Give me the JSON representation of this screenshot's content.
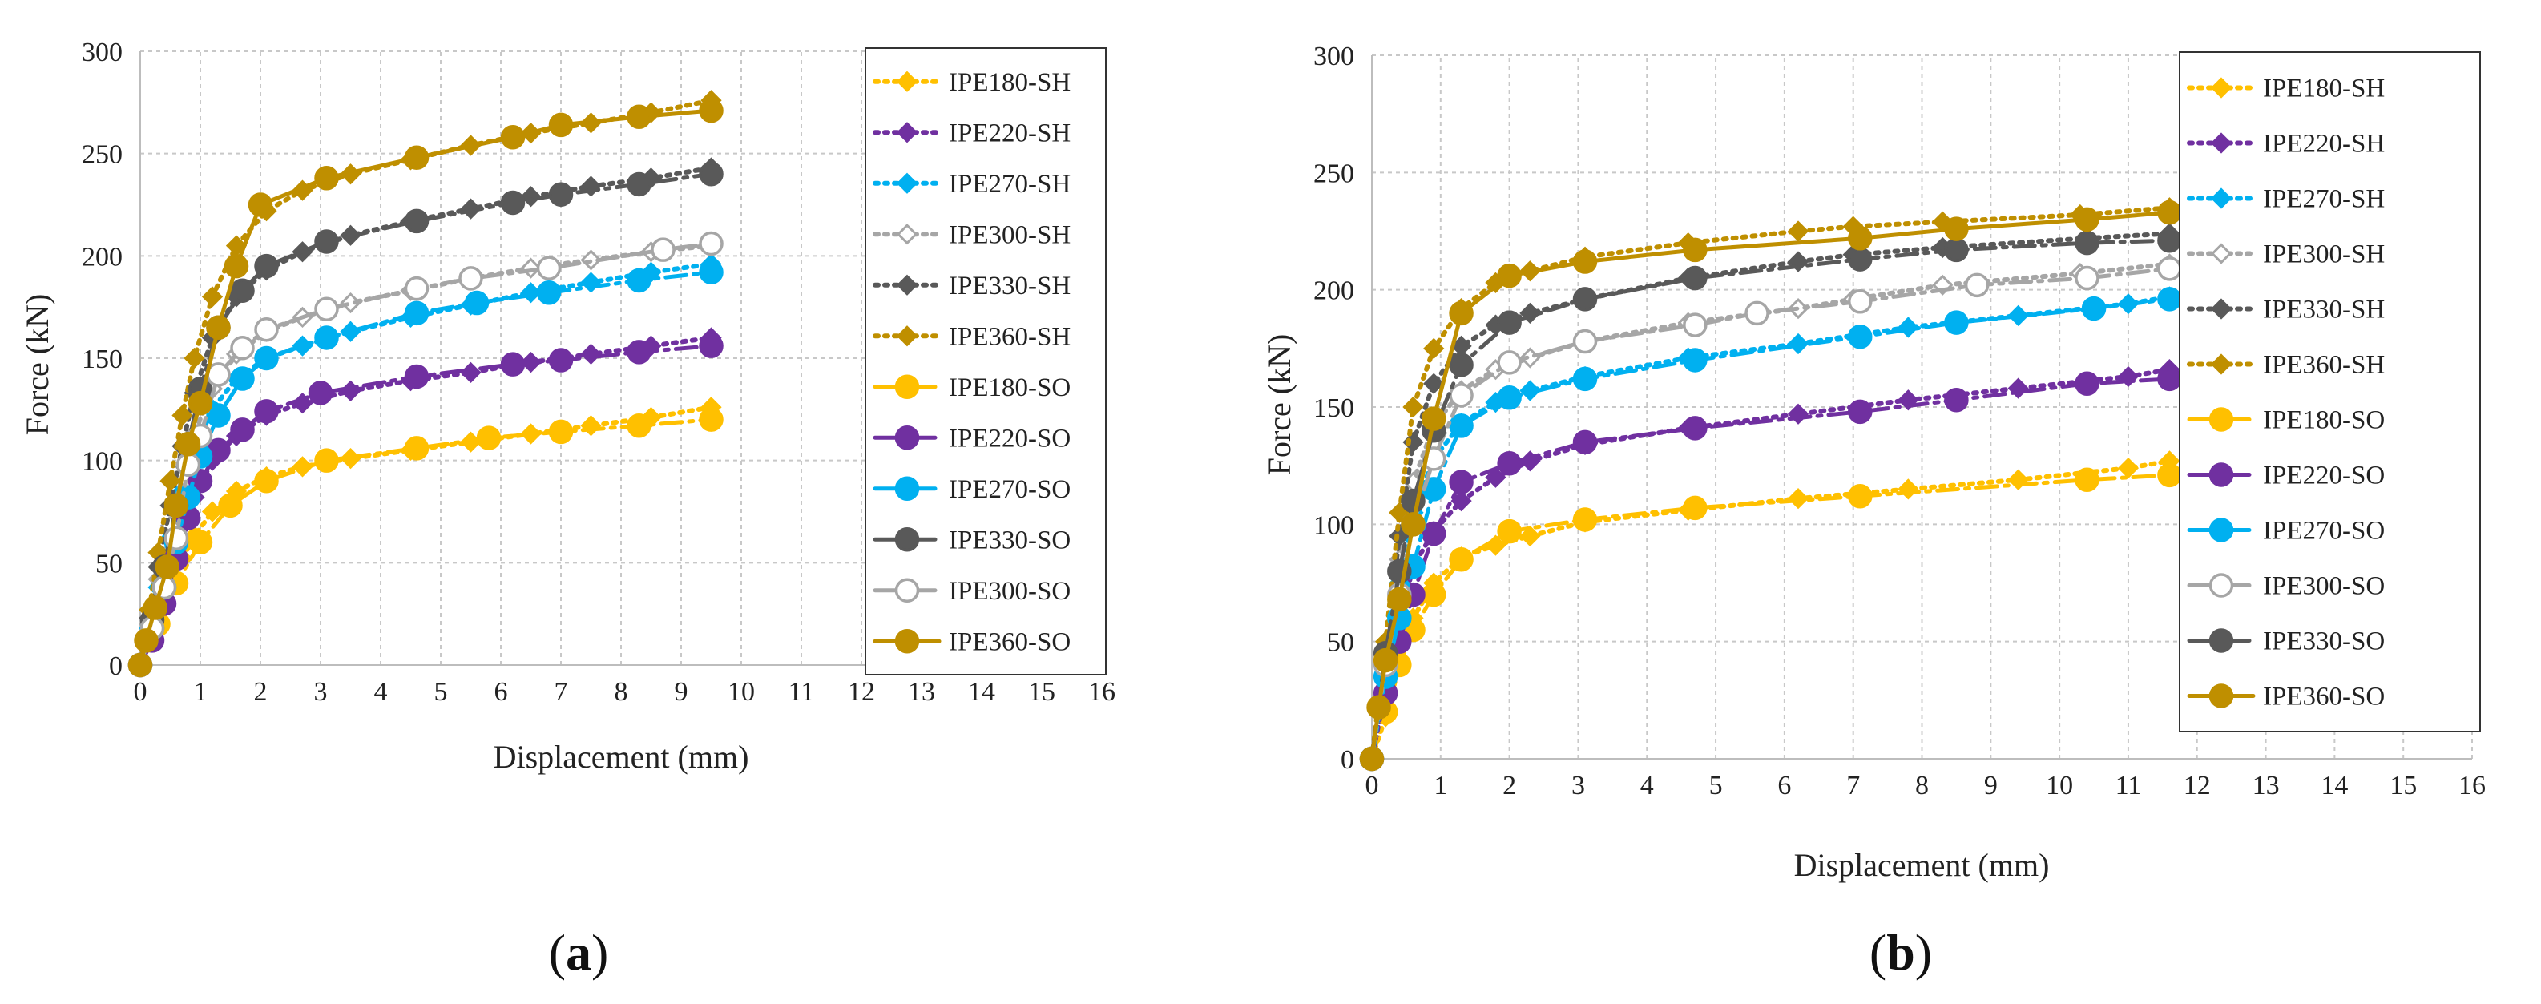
{
  "panels": [
    {
      "letter": "a",
      "label_open": "(",
      "label_close": ")"
    },
    {
      "letter": "b",
      "label_open": "(",
      "label_close": ")"
    }
  ],
  "chart_data": [
    {
      "type": "line",
      "panel": "a",
      "title": "",
      "xlabel": "Displacement (mm)",
      "ylabel": "Force (kN)",
      "xlim": [
        0,
        16
      ],
      "ylim": [
        0,
        300
      ],
      "xticks": [
        0,
        1,
        2,
        3,
        4,
        5,
        6,
        7,
        8,
        9,
        10,
        11,
        12,
        13,
        14,
        15,
        16
      ],
      "yticks": [
        0,
        50,
        100,
        150,
        200,
        250,
        300
      ],
      "grid": true,
      "legend_position": "right",
      "series": [
        {
          "name": "IPE180-SH",
          "color": "#FFC000",
          "style": "dot",
          "marker": "diamond",
          "fill": true,
          "x": [
            0,
            0.15,
            0.3,
            0.5,
            0.7,
            0.9,
            1.2,
            1.6,
            2.1,
            2.7,
            3.5,
            4.5,
            5.5,
            6.5,
            7.5,
            8.5,
            9.5
          ],
          "y": [
            0,
            12,
            25,
            40,
            52,
            63,
            75,
            85,
            92,
            97,
            101,
            105,
            109,
            113,
            117,
            121,
            126
          ]
        },
        {
          "name": "IPE220-SH",
          "color": "#7030A0",
          "style": "dot",
          "marker": "diamond",
          "fill": true,
          "x": [
            0,
            0.15,
            0.3,
            0.5,
            0.7,
            0.9,
            1.2,
            1.6,
            2.1,
            2.7,
            3.5,
            4.5,
            5.5,
            6.5,
            7.5,
            8.5,
            9.5
          ],
          "y": [
            0,
            15,
            30,
            50,
            68,
            82,
            100,
            112,
            122,
            128,
            134,
            139,
            143,
            148,
            152,
            156,
            160
          ]
        },
        {
          "name": "IPE270-SH",
          "color": "#00B0F0",
          "style": "dot",
          "marker": "diamond",
          "fill": true,
          "x": [
            0,
            0.15,
            0.3,
            0.5,
            0.7,
            0.9,
            1.2,
            1.6,
            2.1,
            2.7,
            3.5,
            4.5,
            5.5,
            6.5,
            7.5,
            8.5,
            9.5
          ],
          "y": [
            0,
            18,
            38,
            62,
            85,
            105,
            125,
            140,
            150,
            156,
            163,
            170,
            176,
            182,
            187,
            192,
            196
          ]
        },
        {
          "name": "IPE300-SH",
          "color": "#A6A6A6",
          "style": "dot",
          "marker": "diamond",
          "fill": false,
          "x": [
            0,
            0.15,
            0.3,
            0.5,
            0.7,
            0.9,
            1.2,
            1.6,
            2.1,
            2.7,
            3.5,
            4.5,
            5.5,
            6.5,
            7.5,
            8.5,
            9.5
          ],
          "y": [
            0,
            20,
            42,
            68,
            92,
            113,
            135,
            152,
            163,
            170,
            177,
            183,
            189,
            194,
            198,
            202,
            205
          ]
        },
        {
          "name": "IPE330-SH",
          "color": "#595959",
          "style": "dot",
          "marker": "diamond",
          "fill": true,
          "x": [
            0,
            0.15,
            0.3,
            0.5,
            0.7,
            0.9,
            1.2,
            1.6,
            2.1,
            2.7,
            3.5,
            4.5,
            5.5,
            6.5,
            7.5,
            8.5,
            9.5
          ],
          "y": [
            0,
            23,
            48,
            78,
            107,
            133,
            160,
            180,
            193,
            202,
            210,
            217,
            223,
            229,
            234,
            238,
            243
          ]
        },
        {
          "name": "IPE360-SH",
          "color": "#BF8F00",
          "style": "dot",
          "marker": "diamond",
          "fill": true,
          "x": [
            0,
            0.15,
            0.3,
            0.5,
            0.7,
            0.9,
            1.2,
            1.6,
            2.1,
            2.7,
            3.5,
            4.5,
            5.5,
            6.5,
            7.5,
            8.5,
            9.5
          ],
          "y": [
            0,
            27,
            55,
            90,
            122,
            150,
            180,
            205,
            222,
            232,
            240,
            247,
            254,
            260,
            265,
            270,
            276
          ]
        },
        {
          "name": "IPE180-SO",
          "color": "#FFC000",
          "style": "dashdot",
          "marker": "circle",
          "fill": true,
          "x": [
            0,
            0.3,
            0.6,
            1.0,
            1.5,
            2.1,
            3.1,
            4.6,
            5.8,
            7.0,
            8.3,
            9.5
          ],
          "y": [
            0,
            20,
            40,
            60,
            78,
            90,
            100,
            106,
            111,
            114,
            117,
            120
          ]
        },
        {
          "name": "IPE220-SO",
          "color": "#7030A0",
          "style": "dashdot",
          "marker": "circle",
          "fill": true,
          "x": [
            0,
            0.2,
            0.4,
            0.6,
            0.8,
            1.0,
            1.3,
            1.7,
            2.1,
            3.0,
            4.6,
            6.2,
            7.0,
            8.3,
            9.5
          ],
          "y": [
            0,
            12,
            30,
            52,
            72,
            90,
            105,
            115,
            124,
            133,
            141,
            147,
            149,
            153,
            156
          ]
        },
        {
          "name": "IPE270-SO",
          "color": "#00B0F0",
          "style": "dashdot",
          "marker": "circle",
          "fill": true,
          "x": [
            0,
            0.2,
            0.4,
            0.6,
            0.8,
            1.0,
            1.3,
            1.7,
            2.1,
            3.1,
            4.6,
            5.6,
            6.8,
            8.3,
            9.5
          ],
          "y": [
            0,
            18,
            38,
            60,
            82,
            102,
            122,
            140,
            150,
            160,
            172,
            177,
            182,
            188,
            192
          ]
        },
        {
          "name": "IPE330-SO",
          "color": "#595959",
          "style": "dashdot",
          "marker": "circle",
          "fill": true,
          "x": [
            0,
            0.2,
            0.4,
            0.6,
            0.8,
            1.0,
            1.3,
            1.7,
            2.1,
            3.1,
            4.6,
            6.2,
            7.0,
            8.3,
            9.5
          ],
          "y": [
            0,
            22,
            48,
            78,
            108,
            135,
            165,
            183,
            195,
            207,
            217,
            226,
            230,
            235,
            240
          ]
        },
        {
          "name": "IPE300-SO",
          "color": "#A6A6A6",
          "style": "dashdot",
          "marker": "circle",
          "fill": false,
          "x": [
            0,
            0.2,
            0.4,
            0.6,
            0.8,
            1.0,
            1.3,
            1.7,
            2.1,
            3.1,
            4.6,
            5.5,
            6.8,
            8.7,
            9.5
          ],
          "y": [
            0,
            18,
            38,
            62,
            98,
            112,
            142,
            155,
            164,
            174,
            184,
            189,
            194,
            203,
            206
          ]
        },
        {
          "name": "IPE360-SO",
          "color": "#BF8F00",
          "style": "solid",
          "marker": "circle",
          "fill": true,
          "x": [
            0,
            0.1,
            0.25,
            0.45,
            0.6,
            0.8,
            1.0,
            1.3,
            1.6,
            2.0,
            3.1,
            4.6,
            6.2,
            7.0,
            8.3,
            9.5
          ],
          "y": [
            0,
            12,
            28,
            48,
            78,
            108,
            128,
            165,
            195,
            225,
            238,
            248,
            258,
            264,
            268,
            271
          ]
        }
      ]
    },
    {
      "type": "line",
      "panel": "b",
      "title": "",
      "xlabel": "Displacement (mm)",
      "ylabel": "Force (kN)",
      "xlim": [
        0,
        16
      ],
      "ylim": [
        0,
        300
      ],
      "xticks": [
        0,
        1,
        2,
        3,
        4,
        5,
        6,
        7,
        8,
        9,
        10,
        11,
        12,
        13,
        14,
        15,
        16
      ],
      "yticks": [
        0,
        50,
        100,
        150,
        200,
        250,
        300
      ],
      "grid": true,
      "legend_position": "right",
      "series": [
        {
          "name": "IPE180-SH",
          "color": "#FFC000",
          "style": "dot",
          "marker": "diamond",
          "fill": true,
          "x": [
            0,
            0.2,
            0.4,
            0.6,
            0.9,
            1.3,
            1.8,
            2.3,
            3.1,
            4.6,
            6.2,
            7.8,
            9.4,
            11,
            11.6
          ],
          "y": [
            0,
            18,
            40,
            60,
            75,
            86,
            91,
            95,
            101,
            106,
            111,
            115,
            119,
            124,
            127
          ]
        },
        {
          "name": "IPE220-SH",
          "color": "#7030A0",
          "style": "dot",
          "marker": "diamond",
          "fill": true,
          "x": [
            0,
            0.2,
            0.4,
            0.6,
            0.9,
            1.3,
            1.8,
            2.3,
            3.1,
            4.6,
            6.2,
            7.8,
            9.4,
            11,
            11.6
          ],
          "y": [
            0,
            28,
            58,
            82,
            97,
            110,
            120,
            127,
            134,
            141,
            147,
            153,
            158,
            163,
            166
          ]
        },
        {
          "name": "IPE270-SH",
          "color": "#00B0F0",
          "style": "dot",
          "marker": "diamond",
          "fill": true,
          "x": [
            0,
            0.2,
            0.4,
            0.6,
            0.9,
            1.3,
            1.8,
            2.3,
            3.1,
            4.6,
            6.2,
            7.8,
            9.4,
            11,
            11.6
          ],
          "y": [
            0,
            35,
            75,
            105,
            128,
            143,
            152,
            157,
            163,
            171,
            177,
            184,
            189,
            194,
            197
          ]
        },
        {
          "name": "IPE300-SH",
          "color": "#A6A6A6",
          "style": "dot",
          "marker": "diamond",
          "fill": false,
          "x": [
            0,
            0.2,
            0.4,
            0.6,
            0.9,
            1.3,
            1.8,
            2.3,
            3.1,
            4.6,
            6.2,
            7.0,
            8.3,
            10.3,
            11.6
          ],
          "y": [
            0,
            40,
            85,
            118,
            142,
            157,
            166,
            171,
            178,
            186,
            192,
            196,
            202,
            207,
            211
          ]
        },
        {
          "name": "IPE330-SH",
          "color": "#595959",
          "style": "dot",
          "marker": "diamond",
          "fill": true,
          "x": [
            0,
            0.2,
            0.4,
            0.6,
            0.9,
            1.3,
            1.8,
            2.3,
            3.1,
            4.6,
            6.2,
            7.0,
            8.3,
            10.4,
            11.6
          ],
          "y": [
            0,
            45,
            95,
            135,
            160,
            176,
            185,
            190,
            196,
            205,
            212,
            215,
            218,
            222,
            224
          ]
        },
        {
          "name": "IPE360-SH",
          "color": "#BF8F00",
          "style": "dot",
          "marker": "diamond",
          "fill": true,
          "x": [
            0,
            0.2,
            0.4,
            0.6,
            0.9,
            1.3,
            1.8,
            2.3,
            3.1,
            4.6,
            6.2,
            7.0,
            8.3,
            10.3,
            11.6
          ],
          "y": [
            0,
            50,
            105,
            150,
            175,
            192,
            203,
            208,
            214,
            220,
            225,
            227,
            229,
            232,
            235
          ]
        },
        {
          "name": "IPE180-SO",
          "color": "#FFC000",
          "style": "dashdot",
          "marker": "circle",
          "fill": true,
          "x": [
            0,
            0.2,
            0.4,
            0.6,
            0.9,
            1.3,
            2.0,
            3.1,
            4.7,
            7.1,
            10.4,
            11.6
          ],
          "y": [
            0,
            20,
            40,
            55,
            70,
            85,
            97,
            102,
            107,
            112,
            119,
            121
          ]
        },
        {
          "name": "IPE220-SO",
          "color": "#7030A0",
          "style": "dashdot",
          "marker": "circle",
          "fill": true,
          "x": [
            0,
            0.2,
            0.4,
            0.6,
            0.9,
            1.3,
            2.0,
            3.1,
            4.7,
            7.1,
            8.5,
            10.4,
            11.6
          ],
          "y": [
            0,
            28,
            50,
            70,
            96,
            118,
            126,
            135,
            141,
            148,
            153,
            160,
            162
          ]
        },
        {
          "name": "IPE270-SO",
          "color": "#00B0F0",
          "style": "dashdot",
          "marker": "circle",
          "fill": true,
          "x": [
            0,
            0.2,
            0.4,
            0.6,
            0.9,
            1.3,
            2.0,
            3.1,
            4.7,
            7.1,
            8.5,
            10.5,
            11.6
          ],
          "y": [
            0,
            35,
            60,
            82,
            115,
            142,
            154,
            162,
            170,
            180,
            186,
            192,
            196
          ]
        },
        {
          "name": "IPE300-SO",
          "color": "#A6A6A6",
          "style": "dashdot",
          "marker": "circle",
          "fill": false,
          "x": [
            0,
            0.2,
            0.4,
            0.6,
            0.9,
            1.3,
            2.0,
            3.1,
            4.7,
            5.6,
            7.1,
            8.8,
            10.4,
            11.6
          ],
          "y": [
            0,
            40,
            70,
            100,
            128,
            155,
            169,
            178,
            185,
            190,
            195,
            202,
            205,
            209
          ]
        },
        {
          "name": "IPE330-SO",
          "color": "#595959",
          "style": "dashdot",
          "marker": "circle",
          "fill": true,
          "x": [
            0,
            0.2,
            0.4,
            0.6,
            0.9,
            1.3,
            2.0,
            3.1,
            4.7,
            7.1,
            8.5,
            10.4,
            11.6
          ],
          "y": [
            0,
            45,
            80,
            110,
            140,
            168,
            186,
            196,
            205,
            213,
            217,
            220,
            221
          ]
        },
        {
          "name": "IPE360-SO",
          "color": "#BF8F00",
          "style": "solid",
          "marker": "circle",
          "fill": true,
          "x": [
            0,
            0.1,
            0.2,
            0.4,
            0.6,
            0.9,
            1.3,
            2.0,
            3.1,
            4.7,
            7.1,
            8.5,
            10.4,
            11.6
          ],
          "y": [
            0,
            22,
            42,
            68,
            100,
            145,
            190,
            206,
            212,
            217,
            222,
            226,
            230,
            233
          ]
        }
      ]
    }
  ]
}
